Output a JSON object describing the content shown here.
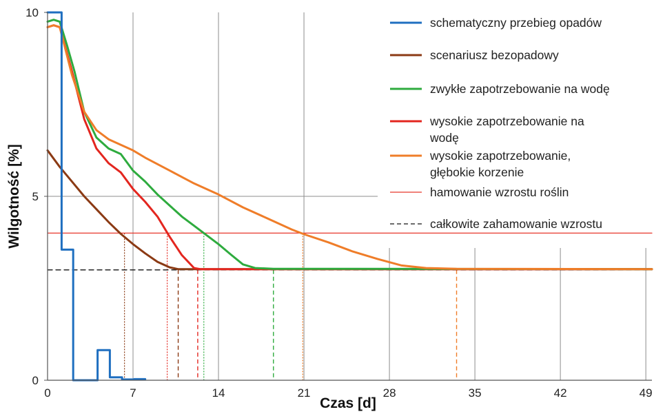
{
  "chart_data": {
    "type": "line",
    "xlabel": "Czas [d]",
    "ylabel": "Wilgotność [%]",
    "xlim": [
      0,
      49.5
    ],
    "ylim": [
      0,
      10
    ],
    "x_ticks": [
      0,
      7,
      14,
      21,
      28,
      35,
      42,
      49
    ],
    "y_ticks": [
      0,
      5,
      10
    ],
    "grid": "vertical",
    "legend_position": "top-right",
    "series": [
      {
        "name": "schematyczny przebieg opadów",
        "color": "#1f6fc0",
        "style": "step",
        "points": [
          [
            0,
            10
          ],
          [
            1.15,
            10
          ],
          [
            1.15,
            3.55
          ],
          [
            2.1,
            3.55
          ],
          [
            2.1,
            0
          ],
          [
            4.1,
            0
          ],
          [
            4.1,
            0.82
          ],
          [
            5.1,
            0.82
          ],
          [
            5.1,
            0.08
          ],
          [
            6.1,
            0.08
          ],
          [
            6.1,
            0.02
          ],
          [
            7.1,
            0.02
          ],
          [
            7.1,
            0.03
          ],
          [
            8,
            0.03
          ]
        ]
      },
      {
        "name": "scenariusz bezopadowy",
        "color": "#8b3a14",
        "style": "line",
        "points": [
          [
            0,
            6.25
          ],
          [
            1,
            5.8
          ],
          [
            2,
            5.4
          ],
          [
            3,
            5.0
          ],
          [
            4,
            4.65
          ],
          [
            5,
            4.3
          ],
          [
            6,
            3.98
          ],
          [
            7,
            3.7
          ],
          [
            8,
            3.45
          ],
          [
            9,
            3.22
          ],
          [
            10,
            3.07
          ],
          [
            10.7,
            3.02
          ],
          [
            49.5,
            3.02
          ]
        ]
      },
      {
        "name": "zwykłe zapotrzebowanie na wodę",
        "color": "#2eab3e",
        "style": "line",
        "points": [
          [
            0,
            9.75
          ],
          [
            0.5,
            9.8
          ],
          [
            1,
            9.75
          ],
          [
            1.6,
            9.1
          ],
          [
            2.2,
            8.4
          ],
          [
            3,
            7.3
          ],
          [
            4,
            6.6
          ],
          [
            5,
            6.3
          ],
          [
            6,
            6.15
          ],
          [
            7,
            5.7
          ],
          [
            8,
            5.4
          ],
          [
            9,
            5.05
          ],
          [
            10,
            4.75
          ],
          [
            11,
            4.45
          ],
          [
            12,
            4.2
          ],
          [
            13,
            3.95
          ],
          [
            14,
            3.7
          ],
          [
            15,
            3.42
          ],
          [
            16,
            3.15
          ],
          [
            17,
            3.05
          ],
          [
            18.5,
            3.03
          ],
          [
            49.5,
            3.02
          ]
        ]
      },
      {
        "name": "wysokie zapotrzebowanie na wodę",
        "color": "#e3261f",
        "style": "line",
        "points": [
          [
            0,
            9.6
          ],
          [
            0.5,
            9.65
          ],
          [
            1,
            9.6
          ],
          [
            2,
            8.4
          ],
          [
            3,
            7.1
          ],
          [
            4,
            6.3
          ],
          [
            5,
            5.9
          ],
          [
            6,
            5.65
          ],
          [
            7,
            5.2
          ],
          [
            8,
            4.85
          ],
          [
            9,
            4.45
          ],
          [
            10,
            3.9
          ],
          [
            11,
            3.4
          ],
          [
            12,
            3.05
          ],
          [
            12.5,
            3.02
          ],
          [
            49.5,
            3.02
          ]
        ]
      },
      {
        "name": "wysokie zapotrzebowanie, głębokie korzenie",
        "color": "#ef7d29",
        "style": "line",
        "points": [
          [
            0,
            9.6
          ],
          [
            0.5,
            9.65
          ],
          [
            1,
            9.6
          ],
          [
            2,
            8.3
          ],
          [
            3,
            7.3
          ],
          [
            4,
            6.8
          ],
          [
            5,
            6.55
          ],
          [
            6,
            6.4
          ],
          [
            7,
            6.25
          ],
          [
            8,
            6.05
          ],
          [
            10,
            5.7
          ],
          [
            12,
            5.35
          ],
          [
            14,
            5.05
          ],
          [
            16,
            4.7
          ],
          [
            18,
            4.4
          ],
          [
            20,
            4.1
          ],
          [
            21,
            3.97
          ],
          [
            23,
            3.75
          ],
          [
            25,
            3.5
          ],
          [
            27,
            3.3
          ],
          [
            29,
            3.12
          ],
          [
            31,
            3.05
          ],
          [
            33.5,
            3.03
          ],
          [
            49.5,
            3.02
          ]
        ]
      },
      {
        "name": "hamowanie wzrostu roślin",
        "color": "#e8362b",
        "style": "thin",
        "points": [
          [
            0,
            4
          ],
          [
            49.5,
            4
          ]
        ]
      },
      {
        "name": "całkowite zahamowanie wzrostu",
        "color": "#111111",
        "style": "dashed",
        "points": [
          [
            0,
            3
          ],
          [
            49.5,
            3
          ]
        ]
      }
    ],
    "markers": [
      {
        "x": 6.3,
        "y0": 0,
        "y1": 4,
        "color": "#8b3a14",
        "dash": "dotted"
      },
      {
        "x": 10.7,
        "y0": 0,
        "y1": 3,
        "color": "#8b3a14",
        "dash": "dashed"
      },
      {
        "x": 9.8,
        "y0": 0,
        "y1": 4,
        "color": "#e3261f",
        "dash": "dotted"
      },
      {
        "x": 12.3,
        "y0": 0,
        "y1": 3,
        "color": "#e3261f",
        "dash": "dashed"
      },
      {
        "x": 12.8,
        "y0": 0,
        "y1": 4,
        "color": "#2eab3e",
        "dash": "dotted"
      },
      {
        "x": 18.5,
        "y0": 0,
        "y1": 3,
        "color": "#2eab3e",
        "dash": "dashed"
      },
      {
        "x": 20.9,
        "y0": 0,
        "y1": 4,
        "color": "#ef7d29",
        "dash": "dotted"
      },
      {
        "x": 33.5,
        "y0": 0,
        "y1": 3,
        "color": "#ef7d29",
        "dash": "dashed"
      }
    ],
    "legend": [
      {
        "lines": [
          "schematyczny przebieg opadów"
        ],
        "color": "#1f6fc0",
        "style": "thick"
      },
      {
        "lines": [
          "scenariusz bezopadowy"
        ],
        "color": "#8b3a14",
        "style": "thick"
      },
      {
        "lines": [
          "zwykłe zapotrzebowanie na wodę"
        ],
        "color": "#2eab3e",
        "style": "thick"
      },
      {
        "lines": [
          "wysokie zapotrzebowanie na",
          "wodę"
        ],
        "color": "#e3261f",
        "style": "thick"
      },
      {
        "lines": [
          "wysokie zapotrzebowanie,",
          "głębokie korzenie"
        ],
        "color": "#ef7d29",
        "style": "thick"
      },
      {
        "lines": [
          "hamowanie wzrostu roślin"
        ],
        "color": "#e8362b",
        "style": "thin"
      },
      {
        "lines": [
          "całkowite zahamowanie wzrostu"
        ],
        "color": "#111111",
        "style": "dashed"
      }
    ]
  }
}
